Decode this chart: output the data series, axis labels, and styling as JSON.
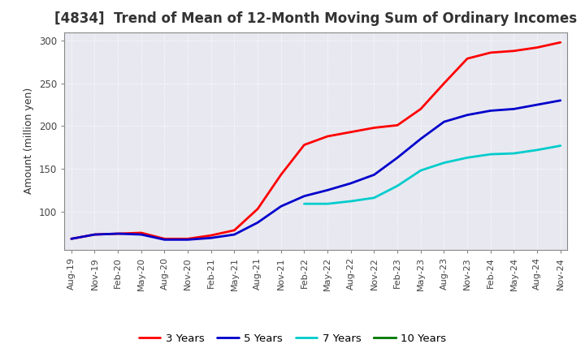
{
  "title": "[4834]  Trend of Mean of 12-Month Moving Sum of Ordinary Incomes",
  "ylabel": "Amount (million yen)",
  "ylim": [
    55,
    310
  ],
  "yticks": [
    100,
    150,
    200,
    250,
    300
  ],
  "background_color": "#ffffff",
  "plot_bg_color": "#e8e8f0",
  "grid_color": "#ffffff",
  "title_fontsize": 12,
  "axis_fontsize": 9,
  "legend_fontsize": 9.5,
  "x_labels": [
    "Aug-19",
    "Nov-19",
    "Feb-20",
    "May-20",
    "Aug-20",
    "Nov-20",
    "Feb-21",
    "May-21",
    "Aug-21",
    "Nov-21",
    "Feb-22",
    "May-22",
    "Aug-22",
    "Nov-22",
    "Feb-23",
    "May-23",
    "Aug-23",
    "Nov-23",
    "Feb-24",
    "May-24",
    "Aug-24",
    "Nov-24"
  ],
  "series": {
    "3 Years": {
      "color": "#ff0000",
      "data_x": [
        0,
        1,
        2,
        3,
        4,
        5,
        6,
        7,
        8,
        9,
        10,
        11,
        12,
        13,
        14,
        15,
        16,
        17,
        18,
        19,
        20,
        21
      ],
      "data_y": [
        68,
        73,
        74,
        75,
        68,
        68,
        72,
        78,
        103,
        143,
        178,
        188,
        193,
        198,
        201,
        220,
        250,
        279,
        286,
        288,
        292,
        298
      ]
    },
    "5 Years": {
      "color": "#0000cc",
      "data_x": [
        0,
        1,
        2,
        3,
        4,
        5,
        6,
        7,
        8,
        9,
        10,
        11,
        12,
        13,
        14,
        15,
        16,
        17,
        18,
        19,
        20,
        21
      ],
      "data_y": [
        68,
        73,
        74,
        73,
        67,
        67,
        69,
        73,
        87,
        106,
        118,
        125,
        133,
        143,
        163,
        185,
        205,
        213,
        218,
        220,
        225,
        230
      ]
    },
    "7 Years": {
      "color": "#00cccc",
      "data_x": [
        10,
        11,
        12,
        13,
        14,
        15,
        16,
        17,
        18,
        19,
        20,
        21
      ],
      "data_y": [
        109,
        109,
        112,
        116,
        130,
        148,
        157,
        163,
        167,
        168,
        172,
        177
      ]
    },
    "10 Years": {
      "color": "#007700",
      "data_x": [],
      "data_y": []
    }
  }
}
